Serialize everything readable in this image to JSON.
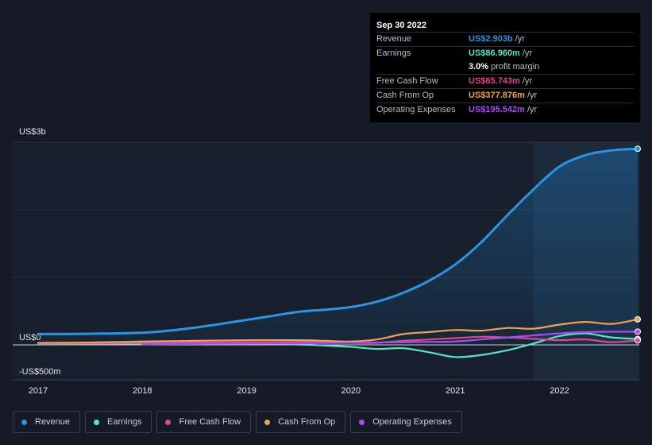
{
  "tooltip": {
    "date": "Sep 30 2022",
    "rows": [
      {
        "label": "Revenue",
        "value": "US$2.903b",
        "unit": "/yr",
        "color": "#2e93e0"
      },
      {
        "label": "Earnings",
        "value": "US$86.960m",
        "unit": "/yr",
        "color": "#5ee0c8"
      },
      {
        "label": "",
        "value": "3.0%",
        "unit": "profit margin",
        "color": "#ffffff"
      },
      {
        "label": "Free Cash Flow",
        "value": "US$65.743m",
        "unit": "/yr",
        "color": "#d9498f"
      },
      {
        "label": "Cash From Op",
        "value": "US$377.876m",
        "unit": "/yr",
        "color": "#e9a35a"
      },
      {
        "label": "Operating Expenses",
        "value": "US$195.542m",
        "unit": "/yr",
        "color": "#a64ff0"
      }
    ]
  },
  "legend": [
    {
      "label": "Revenue",
      "color": "#2e93e0"
    },
    {
      "label": "Earnings",
      "color": "#5ee0c8"
    },
    {
      "label": "Free Cash Flow",
      "color": "#d9498f"
    },
    {
      "label": "Cash From Op",
      "color": "#e9a35a"
    },
    {
      "label": "Operating Expenses",
      "color": "#a64ff0"
    }
  ],
  "chart_data": {
    "type": "line",
    "y_tick_labels": [
      "US$3b",
      "US$0",
      "-US$500m"
    ],
    "y_ticks": [
      3000,
      0,
      -500
    ],
    "ylim": [
      -500,
      3000
    ],
    "xlim": [
      2017.0,
      2022.75
    ],
    "x_tick_labels": [
      "2017",
      "2018",
      "2019",
      "2020",
      "2021",
      "2022"
    ],
    "x_ticks": [
      2017,
      2018,
      2019,
      2020,
      2021,
      2022
    ],
    "grid": true,
    "legend_position": "bottom",
    "highlight_start": 2021.75,
    "series": [
      {
        "name": "Revenue",
        "color": "#2e93e0",
        "area": true,
        "x": [
          2017.0,
          2017.5,
          2018.0,
          2018.25,
          2018.5,
          2018.75,
          2019.0,
          2019.25,
          2019.5,
          2019.75,
          2020.0,
          2020.25,
          2020.5,
          2020.75,
          2021.0,
          2021.25,
          2021.5,
          2021.75,
          2022.0,
          2022.25,
          2022.5,
          2022.75
        ],
        "y": [
          160,
          165,
          180,
          210,
          255,
          310,
          370,
          430,
          490,
          520,
          560,
          640,
          770,
          950,
          1190,
          1520,
          1920,
          2300,
          2640,
          2810,
          2880,
          2903
        ]
      },
      {
        "name": "Earnings",
        "color": "#5ee0c8",
        "x": [
          2017.0,
          2017.5,
          2018.0,
          2018.5,
          2019.0,
          2019.5,
          2019.75,
          2020.0,
          2020.25,
          2020.5,
          2020.75,
          2021.0,
          2021.25,
          2021.5,
          2021.75,
          2022.0,
          2022.25,
          2022.5,
          2022.75
        ],
        "y": [
          5,
          10,
          20,
          25,
          20,
          5,
          -10,
          -30,
          -60,
          -50,
          -110,
          -180,
          -150,
          -80,
          20,
          130,
          170,
          110,
          87
        ]
      },
      {
        "name": "Free Cash Flow",
        "color": "#d9498f",
        "x": [
          2017.0,
          2017.5,
          2018.0,
          2018.5,
          2019.0,
          2019.5,
          2019.75,
          2020.0,
          2020.25,
          2020.5,
          2020.75,
          2021.0,
          2021.25,
          2021.5,
          2021.75,
          2022.0,
          2022.25,
          2022.5,
          2022.75
        ],
        "y": [
          20,
          25,
          30,
          35,
          40,
          45,
          50,
          30,
          30,
          60,
          80,
          100,
          120,
          110,
          90,
          70,
          80,
          40,
          66
        ]
      },
      {
        "name": "Cash From Op",
        "color": "#e9a35a",
        "x": [
          2017.0,
          2017.5,
          2018.0,
          2018.5,
          2019.0,
          2019.5,
          2019.75,
          2020.0,
          2020.25,
          2020.5,
          2020.75,
          2021.0,
          2021.25,
          2021.5,
          2021.75,
          2022.0,
          2022.25,
          2022.5,
          2022.75
        ],
        "y": [
          30,
          35,
          50,
          60,
          70,
          70,
          60,
          50,
          80,
          160,
          190,
          220,
          210,
          250,
          240,
          300,
          340,
          310,
          378
        ]
      },
      {
        "name": "Operating Expenses",
        "color": "#a64ff0",
        "x": [
          2018.0,
          2018.5,
          2019.0,
          2019.5,
          2020.0,
          2020.25,
          2020.5,
          2020.75,
          2021.0,
          2021.25,
          2021.5,
          2021.75,
          2022.0,
          2022.25,
          2022.5,
          2022.75
        ],
        "y": [
          10,
          15,
          20,
          25,
          30,
          35,
          40,
          45,
          50,
          80,
          110,
          140,
          170,
          190,
          195,
          196
        ]
      }
    ]
  }
}
